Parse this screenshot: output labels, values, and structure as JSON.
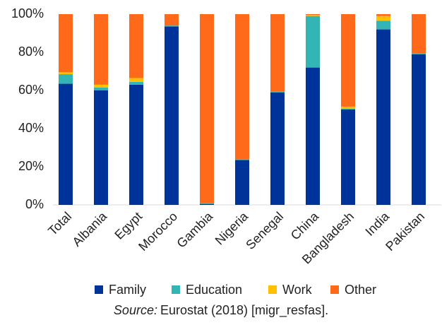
{
  "chart_data": {
    "type": "stacked_bar",
    "categories": [
      "Total",
      "Albania",
      "Egypt",
      "Morocco",
      "Gambia",
      "Nigeria",
      "Senegal",
      "China",
      "Bangladesh",
      "India",
      "Pakistan"
    ],
    "series": [
      {
        "name": "Family",
        "color": "#003399",
        "values": [
          63.5,
          60,
          63,
          93.5,
          0.5,
          23.5,
          59,
          72,
          50,
          92,
          79
        ]
      },
      {
        "name": "Education",
        "color": "#33b5b5",
        "values": [
          5,
          1.5,
          1.5,
          0.5,
          0.5,
          0.5,
          0.5,
          27,
          0.5,
          4.5,
          0.5
        ]
      },
      {
        "name": "Work",
        "color": "#ffc000",
        "values": [
          1,
          1.5,
          2,
          0,
          0,
          0,
          0,
          0.5,
          1,
          2.5,
          0
        ]
      },
      {
        "name": "Other",
        "color": "#ff6a1a",
        "values": [
          30.5,
          37,
          33.5,
          6,
          99,
          76,
          40.5,
          0.5,
          48.5,
          1,
          20.5
        ]
      }
    ],
    "ylim": [
      0,
      100
    ],
    "yticks": [
      {
        "value": 0,
        "label": "0%"
      },
      {
        "value": 20,
        "label": "20%"
      },
      {
        "value": 40,
        "label": "40%"
      },
      {
        "value": 60,
        "label": "60%"
      },
      {
        "value": 80,
        "label": "80%"
      },
      {
        "value": 100,
        "label": "100%"
      }
    ],
    "grid": false,
    "legend": "bottom",
    "source_label": "Source:",
    "source_text": "Eurostat (2018) [migr_resfas]."
  }
}
